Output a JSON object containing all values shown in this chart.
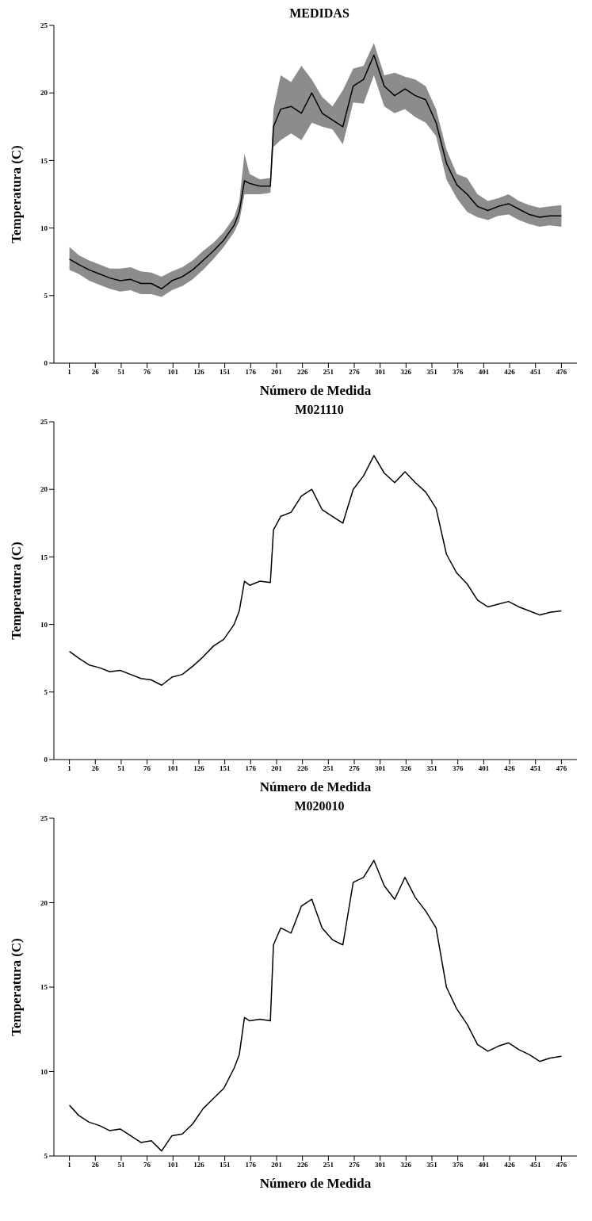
{
  "chart_data": [
    {
      "type": "line",
      "title": "MEDIDAS",
      "xlabel": "Número de Medida",
      "ylabel": "Temperatura (C)",
      "xlim": [
        -14,
        491
      ],
      "ylim": [
        0,
        25
      ],
      "xticks": [
        1,
        26,
        51,
        76,
        101,
        126,
        151,
        176,
        201,
        226,
        251,
        276,
        301,
        326,
        351,
        376,
        401,
        426,
        451,
        476
      ],
      "yticks": [
        0,
        5,
        10,
        15,
        20,
        25
      ],
      "grid": false,
      "legend": false,
      "x": [
        1,
        10,
        20,
        30,
        40,
        50,
        60,
        70,
        80,
        90,
        100,
        110,
        120,
        130,
        140,
        150,
        160,
        165,
        170,
        175,
        185,
        195,
        198,
        205,
        215,
        225,
        235,
        245,
        255,
        265,
        275,
        285,
        295,
        305,
        315,
        325,
        335,
        345,
        355,
        365,
        375,
        385,
        395,
        405,
        415,
        425,
        435,
        445,
        455,
        465,
        476
      ],
      "series": [
        {
          "color": "#000000",
          "values": [
            7.7,
            7.3,
            6.9,
            6.6,
            6.3,
            6.1,
            6.2,
            5.9,
            5.9,
            5.5,
            6.1,
            6.4,
            6.9,
            7.6,
            8.3,
            9.1,
            10.2,
            11.2,
            13.5,
            13.3,
            13.1,
            13.1,
            17.5,
            18.8,
            19.0,
            18.5,
            20.0,
            18.5,
            18.0,
            17.5,
            20.5,
            21.0,
            22.8,
            20.5,
            19.8,
            20.3,
            19.8,
            19.5,
            17.8,
            14.8,
            13.2,
            12.5,
            11.6,
            11.3,
            11.6,
            11.8,
            11.4,
            11.0,
            10.8,
            10.9,
            10.9
          ],
          "lower": [
            6.9,
            6.6,
            6.1,
            5.8,
            5.5,
            5.3,
            5.4,
            5.1,
            5.1,
            4.9,
            5.4,
            5.7,
            6.2,
            6.9,
            7.7,
            8.6,
            9.7,
            10.5,
            12.5,
            12.5,
            12.5,
            12.6,
            16.0,
            16.5,
            17.0,
            16.5,
            17.8,
            17.5,
            17.3,
            16.2,
            19.3,
            19.2,
            21.3,
            19.0,
            18.5,
            18.8,
            18.2,
            17.8,
            16.8,
            13.6,
            12.2,
            11.2,
            10.8,
            10.6,
            10.9,
            11.0,
            10.6,
            10.3,
            10.1,
            10.2,
            10.1
          ],
          "upper": [
            8.6,
            8.0,
            7.6,
            7.3,
            7.0,
            7.0,
            7.1,
            6.8,
            6.7,
            6.4,
            6.8,
            7.1,
            7.6,
            8.3,
            8.9,
            9.7,
            10.8,
            12.0,
            15.5,
            14.0,
            13.6,
            13.7,
            18.8,
            21.3,
            20.8,
            22.0,
            21.0,
            19.7,
            19.0,
            20.2,
            21.8,
            22.0,
            23.7,
            21.3,
            21.5,
            21.2,
            21.0,
            20.5,
            18.8,
            15.8,
            14.0,
            13.7,
            12.5,
            12.0,
            12.2,
            12.5,
            12.0,
            11.7,
            11.5,
            11.6,
            11.7
          ]
        }
      ]
    },
    {
      "type": "line",
      "title": "M021110",
      "xlabel": "Número de Medida",
      "ylabel": "Temperatura (C)",
      "xlim": [
        -14,
        491
      ],
      "ylim": [
        0,
        25
      ],
      "xticks": [
        1,
        26,
        51,
        76,
        101,
        126,
        151,
        176,
        201,
        226,
        251,
        276,
        301,
        326,
        351,
        376,
        401,
        426,
        451,
        476
      ],
      "yticks": [
        0,
        5,
        10,
        15,
        20,
        25
      ],
      "grid": false,
      "legend": false,
      "x": [
        1,
        10,
        20,
        30,
        40,
        50,
        60,
        70,
        80,
        90,
        100,
        110,
        120,
        130,
        140,
        150,
        160,
        165,
        170,
        175,
        185,
        195,
        198,
        205,
        215,
        225,
        235,
        245,
        255,
        265,
        275,
        285,
        295,
        305,
        315,
        325,
        335,
        345,
        355,
        365,
        375,
        385,
        395,
        405,
        415,
        425,
        435,
        445,
        455,
        465,
        476
      ],
      "series": [
        {
          "color": "#000000",
          "values": [
            8.0,
            7.5,
            7.0,
            6.8,
            6.5,
            6.6,
            6.3,
            6.0,
            5.9,
            5.5,
            6.1,
            6.3,
            6.9,
            7.6,
            8.4,
            8.9,
            10.0,
            11.0,
            13.2,
            12.9,
            13.2,
            13.1,
            17.0,
            18.0,
            18.3,
            19.5,
            20.0,
            18.5,
            18.0,
            17.5,
            20.0,
            21.0,
            22.5,
            21.2,
            20.5,
            21.3,
            20.5,
            19.8,
            18.6,
            15.2,
            13.8,
            13.0,
            11.8,
            11.3,
            11.5,
            11.7,
            11.3,
            11.0,
            10.7,
            10.9,
            11.0
          ]
        }
      ]
    },
    {
      "type": "line",
      "title": "M020010",
      "xlabel": "Número de Medida",
      "ylabel": "Temperatura (C)",
      "xlim": [
        -14,
        491
      ],
      "ylim": [
        5,
        25
      ],
      "xticks": [
        1,
        26,
        51,
        76,
        101,
        126,
        151,
        176,
        201,
        226,
        251,
        276,
        301,
        326,
        351,
        376,
        401,
        426,
        451,
        476
      ],
      "yticks": [
        5,
        10,
        15,
        20,
        25
      ],
      "grid": false,
      "legend": false,
      "x": [
        1,
        10,
        20,
        30,
        40,
        50,
        60,
        70,
        80,
        90,
        100,
        110,
        120,
        130,
        140,
        150,
        160,
        165,
        170,
        175,
        185,
        195,
        198,
        205,
        215,
        225,
        235,
        245,
        255,
        265,
        275,
        285,
        295,
        305,
        315,
        325,
        335,
        345,
        355,
        365,
        375,
        385,
        395,
        405,
        415,
        425,
        435,
        445,
        455,
        465,
        476
      ],
      "series": [
        {
          "color": "#000000",
          "values": [
            8.0,
            7.4,
            7.0,
            6.8,
            6.5,
            6.6,
            6.2,
            5.8,
            5.9,
            5.3,
            6.2,
            6.3,
            6.9,
            7.8,
            8.4,
            9.0,
            10.2,
            11.0,
            13.2,
            13.0,
            13.1,
            13.0,
            17.5,
            18.5,
            18.2,
            19.8,
            20.2,
            18.5,
            17.8,
            17.5,
            21.2,
            21.5,
            22.5,
            21.0,
            20.2,
            21.5,
            20.3,
            19.5,
            18.5,
            15.0,
            13.7,
            12.8,
            11.6,
            11.2,
            11.5,
            11.7,
            11.3,
            11.0,
            10.6,
            10.8,
            10.9
          ]
        }
      ]
    }
  ]
}
